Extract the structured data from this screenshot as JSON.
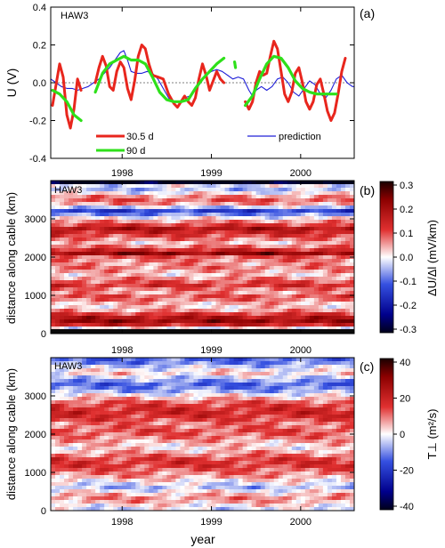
{
  "chart_data": [
    {
      "panel": "(a)",
      "type": "line",
      "station": "HAW3",
      "xlim": [
        1997.2,
        2000.6
      ],
      "ylim": [
        -0.4,
        0.4
      ],
      "ylabel": "U (V)",
      "yticks": [
        -0.4,
        -0.2,
        0.0,
        0.2,
        0.4
      ],
      "ytick_labels": [
        "-0.4",
        "-0.2",
        "0.0",
        "0.2",
        "0.4"
      ],
      "series": [
        {
          "name": "30.5 d",
          "color": "#e8261d",
          "segments": [
            [
              [
                1997.22,
                -0.12
              ],
              [
                1997.26,
                -0.01
              ],
              [
                1997.3,
                0.1
              ],
              [
                1997.34,
                0.03
              ],
              [
                1997.38,
                -0.17
              ],
              [
                1997.42,
                -0.24
              ],
              [
                1997.46,
                -0.14
              ],
              [
                1997.5,
                0.02
              ],
              [
                1997.54,
                -0.04
              ]
            ],
            [
              [
                1997.7,
                0.0
              ],
              [
                1997.74,
                0.08
              ],
              [
                1997.78,
                0.14
              ],
              [
                1997.82,
                0.09
              ],
              [
                1997.86,
                -0.02
              ],
              [
                1997.9,
                -0.04
              ],
              [
                1997.94,
                0.06
              ],
              [
                1997.98,
                0.11
              ],
              [
                1998.02,
                0.08
              ],
              [
                1998.06,
                -0.03
              ],
              [
                1998.1,
                -0.09
              ],
              [
                1998.14,
                0.01
              ],
              [
                1998.18,
                0.14
              ],
              [
                1998.22,
                0.2
              ],
              [
                1998.26,
                0.18
              ],
              [
                1998.3,
                0.1
              ],
              [
                1998.34,
                0.04
              ],
              [
                1998.4,
                0.03
              ],
              [
                1998.46,
                0.02
              ],
              [
                1998.52,
                -0.06
              ],
              [
                1998.58,
                -0.11
              ],
              [
                1998.62,
                -0.13
              ],
              [
                1998.66,
                -0.1
              ],
              [
                1998.7,
                -0.07
              ],
              [
                1998.74,
                -0.1
              ],
              [
                1998.78,
                -0.12
              ],
              [
                1998.82,
                -0.08
              ],
              [
                1998.86,
                0.02
              ],
              [
                1998.9,
                0.1
              ],
              [
                1998.94,
                0.04
              ],
              [
                1998.98,
                -0.04
              ],
              [
                1999.02,
                0.01
              ],
              [
                1999.06,
                0.06
              ],
              [
                1999.1,
                0.02
              ],
              [
                1999.14,
                0.0
              ]
            ],
            [
              [
                1999.38,
                -0.1
              ],
              [
                1999.42,
                -0.14
              ],
              [
                1999.46,
                -0.1
              ],
              [
                1999.5,
                0.0
              ],
              [
                1999.54,
                0.06
              ],
              [
                1999.58,
                0.04
              ],
              [
                1999.62,
                0.05
              ],
              [
                1999.66,
                0.14
              ],
              [
                1999.7,
                0.22
              ],
              [
                1999.74,
                0.18
              ],
              [
                1999.78,
                0.06
              ],
              [
                1999.82,
                -0.06
              ],
              [
                1999.86,
                -0.1
              ],
              [
                1999.9,
                -0.05
              ],
              [
                1999.94,
                0.05
              ],
              [
                1999.98,
                0.08
              ],
              [
                2000.02,
                0.0
              ],
              [
                2000.06,
                -0.1
              ],
              [
                2000.1,
                -0.14
              ],
              [
                2000.14,
                -0.1
              ],
              [
                2000.18,
                -0.01
              ],
              [
                2000.22,
                0.02
              ],
              [
                2000.26,
                -0.06
              ],
              [
                2000.3,
                -0.15
              ],
              [
                2000.34,
                -0.2
              ],
              [
                2000.38,
                -0.16
              ],
              [
                2000.42,
                -0.06
              ],
              [
                2000.46,
                0.06
              ],
              [
                2000.5,
                0.13
              ]
            ]
          ]
        },
        {
          "name": "90 d",
          "color": "#2ee01a",
          "segments": [
            [
              [
                1997.22,
                -0.04
              ],
              [
                1997.3,
                -0.06
              ],
              [
                1997.38,
                -0.1
              ],
              [
                1997.46,
                -0.17
              ],
              [
                1997.54,
                -0.2
              ]
            ],
            [
              [
                1997.7,
                -0.05
              ],
              [
                1997.78,
                0.05
              ],
              [
                1997.86,
                0.1
              ],
              [
                1997.94,
                0.12
              ],
              [
                1998.02,
                0.14
              ],
              [
                1998.1,
                0.12
              ],
              [
                1998.18,
                0.12
              ],
              [
                1998.26,
                0.1
              ],
              [
                1998.34,
                0.03
              ],
              [
                1998.42,
                -0.05
              ],
              [
                1998.5,
                -0.09
              ],
              [
                1998.58,
                -0.1
              ],
              [
                1998.66,
                -0.1
              ],
              [
                1998.74,
                -0.09
              ],
              [
                1998.82,
                -0.03
              ],
              [
                1998.9,
                0.02
              ],
              [
                1998.98,
                0.06
              ],
              [
                1999.06,
                0.1
              ],
              [
                1999.14,
                0.13
              ]
            ],
            [
              [
                1999.26,
                0.11
              ],
              [
                1999.27,
                0.08
              ]
            ],
            [
              [
                1999.38,
                -0.12
              ],
              [
                1999.46,
                -0.07
              ],
              [
                1999.54,
                0.02
              ],
              [
                1999.62,
                0.1
              ],
              [
                1999.7,
                0.14
              ],
              [
                1999.78,
                0.13
              ],
              [
                1999.86,
                0.08
              ],
              [
                1999.94,
                0.01
              ],
              [
                2000.02,
                -0.03
              ],
              [
                2000.1,
                -0.05
              ],
              [
                2000.18,
                -0.06
              ],
              [
                2000.26,
                -0.06
              ],
              [
                2000.34,
                -0.06
              ],
              [
                2000.4,
                -0.06
              ]
            ]
          ]
        },
        {
          "name": "prediction",
          "color": "#2020d8",
          "segments": [
            [
              [
                1997.2,
                0.02
              ],
              [
                1997.26,
                0.0
              ],
              [
                1997.32,
                -0.02
              ],
              [
                1997.38,
                -0.03
              ],
              [
                1997.44,
                -0.03
              ],
              [
                1997.5,
                -0.04
              ],
              [
                1997.56,
                -0.03
              ],
              [
                1997.62,
                -0.02
              ],
              [
                1997.68,
                0.0
              ],
              [
                1997.74,
                0.02
              ],
              [
                1997.8,
                0.05
              ],
              [
                1997.86,
                0.08
              ],
              [
                1997.92,
                0.12
              ],
              [
                1997.98,
                0.16
              ],
              [
                1998.02,
                0.17
              ],
              [
                1998.06,
                0.12
              ],
              [
                1998.1,
                0.06
              ],
              [
                1998.16,
                0.05
              ],
              [
                1998.22,
                0.05
              ],
              [
                1998.28,
                0.06
              ],
              [
                1998.34,
                0.05
              ],
              [
                1998.4,
                0.02
              ],
              [
                1998.46,
                -0.03
              ],
              [
                1998.52,
                -0.08
              ],
              [
                1998.58,
                -0.1
              ],
              [
                1998.64,
                -0.1
              ],
              [
                1998.7,
                -0.08
              ],
              [
                1998.76,
                -0.07
              ],
              [
                1998.82,
                -0.04
              ],
              [
                1998.88,
                0.0
              ],
              [
                1998.94,
                0.04
              ],
              [
                1999.0,
                0.06
              ],
              [
                1999.06,
                0.07
              ],
              [
                1999.12,
                0.06
              ],
              [
                1999.18,
                0.04
              ],
              [
                1999.24,
                0.02
              ],
              [
                1999.3,
                0.03
              ],
              [
                1999.36,
                0.02
              ],
              [
                1999.42,
                -0.04
              ],
              [
                1999.46,
                -0.07
              ],
              [
                1999.5,
                -0.04
              ],
              [
                1999.56,
                -0.02
              ],
              [
                1999.62,
                -0.04
              ],
              [
                1999.68,
                -0.02
              ],
              [
                1999.74,
                0.02
              ],
              [
                1999.8,
                0.03
              ],
              [
                1999.86,
                0.0
              ],
              [
                1999.92,
                -0.05
              ],
              [
                1999.98,
                -0.07
              ],
              [
                2000.04,
                -0.03
              ],
              [
                2000.1,
                0.01
              ],
              [
                2000.16,
                -0.01
              ],
              [
                2000.22,
                -0.06
              ],
              [
                2000.28,
                -0.08
              ],
              [
                2000.34,
                -0.04
              ],
              [
                2000.4,
                0.02
              ],
              [
                2000.46,
                0.04
              ],
              [
                2000.52,
                0.0
              ],
              [
                2000.58,
                -0.02
              ],
              [
                2000.6,
                -0.02
              ]
            ]
          ]
        }
      ]
    },
    {
      "panel": "(b)",
      "type": "heatmap",
      "station": "HAW3",
      "xlim": [
        1997.2,
        2000.6
      ],
      "ylim": [
        0,
        4000
      ],
      "ylabel": "distance along cable (km)",
      "xticks": [
        1998,
        1999,
        2000
      ],
      "xtick_labels": [
        "1998",
        "1999",
        "2000"
      ],
      "yticks": [
        0,
        1000,
        2000,
        3000
      ],
      "ytick_labels": [
        "0",
        "1000",
        "2000",
        "3000"
      ],
      "colorbar_label": "ΔU/Δl (mV/km)",
      "colorbar_range": [
        -0.3,
        0.3
      ],
      "colorbar_ticks": [
        "0.3",
        "0.2",
        "0.1",
        "0.0",
        "-0.1",
        "-0.2",
        "-0.3"
      ],
      "profile": [
        [
          0,
          -0.32
        ],
        [
          80,
          -0.1
        ],
        [
          200,
          0.12
        ],
        [
          350,
          0.22
        ],
        [
          500,
          0.12
        ],
        [
          650,
          0.02
        ],
        [
          800,
          0.04
        ],
        [
          950,
          0.1
        ],
        [
          1100,
          0.04
        ],
        [
          1250,
          0.12
        ],
        [
          1400,
          0.08
        ],
        [
          1550,
          0.02
        ],
        [
          1700,
          0.07
        ],
        [
          1850,
          0.05
        ],
        [
          2000,
          0.09
        ],
        [
          2100,
          0.22
        ],
        [
          2200,
          0.12
        ],
        [
          2350,
          0.02
        ],
        [
          2500,
          0.08
        ],
        [
          2650,
          0.14
        ],
        [
          2750,
          0.18
        ],
        [
          2850,
          0.1
        ],
        [
          3000,
          0.02
        ],
        [
          3100,
          -0.06
        ],
        [
          3200,
          -0.14
        ],
        [
          3300,
          -0.03
        ],
        [
          3450,
          0.1
        ],
        [
          3600,
          0.05
        ],
        [
          3750,
          -0.05
        ],
        [
          3850,
          0.02
        ],
        [
          3950,
          -0.3
        ]
      ]
    },
    {
      "panel": "(c)",
      "type": "heatmap",
      "station": "HAW3",
      "xlim": [
        1997.2,
        2000.6
      ],
      "ylim": [
        0,
        4000
      ],
      "xlabel": "year",
      "ylabel": "distance along cable (km)",
      "xticks": [
        1998,
        1999,
        2000
      ],
      "xtick_labels": [
        "1998",
        "1999",
        "2000"
      ],
      "yticks": [
        0,
        1000,
        2000,
        3000
      ],
      "ytick_labels": [
        "0",
        "1000",
        "2000",
        "3000"
      ],
      "colorbar_label": "T⊥ (m²/s)",
      "colorbar_range": [
        -45,
        45
      ],
      "colorbar_ticks": [
        "40",
        "20",
        "0",
        "-20",
        "-40"
      ],
      "profile": [
        [
          0,
          -4
        ],
        [
          150,
          2
        ],
        [
          300,
          10
        ],
        [
          450,
          4
        ],
        [
          600,
          -6
        ],
        [
          750,
          0
        ],
        [
          900,
          8
        ],
        [
          1050,
          12
        ],
        [
          1200,
          18
        ],
        [
          1350,
          16
        ],
        [
          1500,
          8
        ],
        [
          1650,
          2
        ],
        [
          1800,
          6
        ],
        [
          1950,
          12
        ],
        [
          2100,
          14
        ],
        [
          2250,
          10
        ],
        [
          2400,
          16
        ],
        [
          2550,
          20
        ],
        [
          2700,
          18
        ],
        [
          2850,
          12
        ],
        [
          3000,
          2
        ],
        [
          3150,
          -10
        ],
        [
          3300,
          -14
        ],
        [
          3450,
          -6
        ],
        [
          3600,
          4
        ],
        [
          3750,
          -4
        ],
        [
          3900,
          -14
        ]
      ]
    }
  ]
}
